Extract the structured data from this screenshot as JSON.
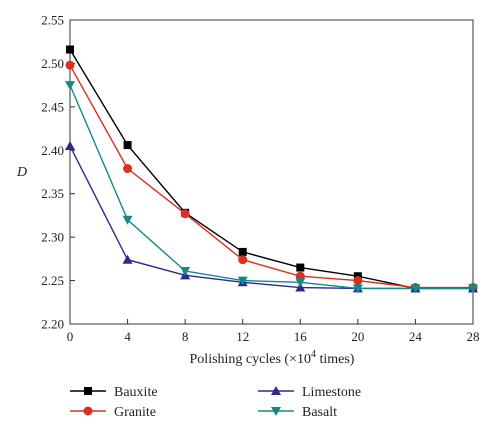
{
  "chart_data": {
    "type": "line",
    "title": "",
    "xlabel_prefix": "Polishing cycles (×10",
    "xlabel_sup": "4",
    "xlabel_suffix": " times)",
    "ylabel": "D",
    "x": [
      0,
      4,
      8,
      12,
      16,
      20,
      24,
      28
    ],
    "xlim": [
      0,
      28
    ],
    "ylim": [
      2.2,
      2.55
    ],
    "xticks": [
      0,
      4,
      8,
      12,
      16,
      20,
      24,
      28
    ],
    "yticks": [
      2.2,
      2.25,
      2.3,
      2.35,
      2.4,
      2.45,
      2.5,
      2.55
    ],
    "ytick_labels": [
      "2.20",
      "2.25",
      "2.30",
      "2.35",
      "2.40",
      "2.45",
      "2.50",
      "2.55"
    ],
    "legend_position": "bottom",
    "series": [
      {
        "name": "Bauxite",
        "marker": "square",
        "color": "#000000",
        "values": [
          2.516,
          2.406,
          2.328,
          2.283,
          2.265,
          2.255,
          2.241,
          2.241
        ]
      },
      {
        "name": "Granite",
        "marker": "circle",
        "color": "#d9301f",
        "values": [
          2.498,
          2.379,
          2.327,
          2.274,
          2.255,
          2.25,
          2.242,
          2.242
        ]
      },
      {
        "name": "Limestone",
        "marker": "triangle-up",
        "color": "#2e2a8c",
        "values": [
          2.405,
          2.274,
          2.256,
          2.248,
          2.242,
          2.241,
          2.241,
          2.241
        ]
      },
      {
        "name": "Basalt",
        "marker": "triangle-down",
        "color": "#138a8a",
        "values": [
          2.475,
          2.32,
          2.261,
          2.25,
          2.248,
          2.241,
          2.241,
          2.241
        ]
      }
    ]
  }
}
